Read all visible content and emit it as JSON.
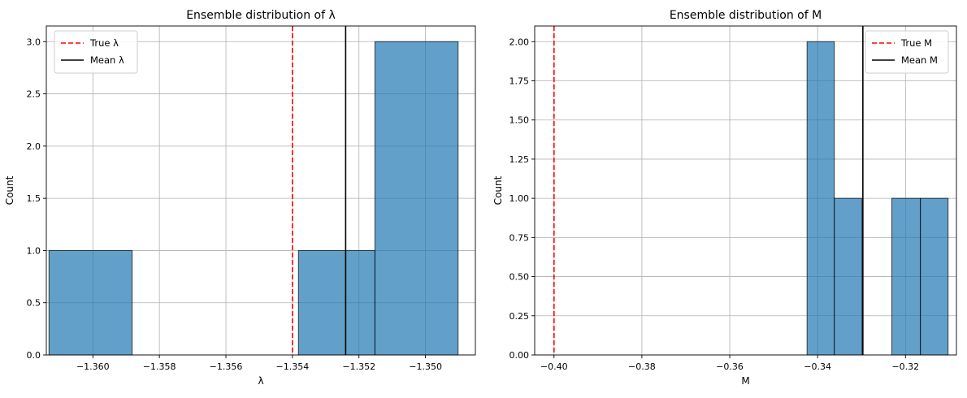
{
  "chart_data": [
    {
      "type": "bar",
      "title": "Ensemble distribution of λ",
      "xlabel": "λ",
      "ylabel": "Count",
      "xlim": [
        -1.3614,
        -1.3485
      ],
      "ylim": [
        0,
        3.15
      ],
      "xticks": [
        -1.36,
        -1.358,
        -1.356,
        -1.354,
        -1.352,
        -1.35
      ],
      "xtick_labels": [
        "−1.360",
        "−1.358",
        "−1.356",
        "−1.354",
        "−1.352",
        "−1.350"
      ],
      "yticks": [
        0,
        0.5,
        1.0,
        1.5,
        2.0,
        2.5,
        3.0
      ],
      "ytick_labels": [
        "0.0",
        "0.5",
        "1.0",
        "1.5",
        "2.0",
        "2.5",
        "3.0"
      ],
      "grid": true,
      "bins": [
        {
          "x0": -1.36132,
          "x1": -1.35882,
          "count": 1
        },
        {
          "x0": -1.35882,
          "x1": -1.35632,
          "count": 0
        },
        {
          "x0": -1.35632,
          "x1": -1.35382,
          "count": 0
        },
        {
          "x0": -1.35382,
          "x1": -1.35152,
          "count": 1
        },
        {
          "x0": -1.35152,
          "x1": -1.34902,
          "count": 3
        }
      ],
      "lines": [
        {
          "name": "True λ",
          "x": -1.354,
          "color": "#ff0000",
          "style": "dashed"
        },
        {
          "name": "Mean λ",
          "x": -1.3524,
          "color": "#000000",
          "style": "solid"
        }
      ],
      "legend": "top-left"
    },
    {
      "type": "bar",
      "title": "Ensemble distribution of M",
      "xlabel": "M",
      "ylabel": "Count",
      "xlim": [
        -0.4044,
        -0.3084
      ],
      "ylim": [
        0,
        2.1
      ],
      "xticks": [
        -0.4,
        -0.38,
        -0.36,
        -0.34,
        -0.32
      ],
      "xtick_labels": [
        "−0.40",
        "−0.38",
        "−0.36",
        "−0.34",
        "−0.32"
      ],
      "yticks": [
        0,
        0.25,
        0.5,
        0.75,
        1.0,
        1.25,
        1.5,
        1.75,
        2.0
      ],
      "ytick_labels": [
        "0.00",
        "0.25",
        "0.50",
        "0.75",
        "1.00",
        "1.25",
        "1.50",
        "1.75",
        "2.00"
      ],
      "grid": true,
      "bins": [
        {
          "x0": -0.3424,
          "x1": -0.3362,
          "count": 2
        },
        {
          "x0": -0.3362,
          "x1": -0.3299,
          "count": 1
        },
        {
          "x0": -0.3299,
          "x1": -0.3231,
          "count": 0
        },
        {
          "x0": -0.3231,
          "x1": -0.3166,
          "count": 1
        },
        {
          "x0": -0.3166,
          "x1": -0.3103,
          "count": 1
        }
      ],
      "lines": [
        {
          "name": "True M",
          "x": -0.4,
          "color": "#ff0000",
          "style": "dashed"
        },
        {
          "name": "Mean M",
          "x": -0.3297,
          "color": "#000000",
          "style": "solid"
        }
      ],
      "legend": "top-right"
    }
  ],
  "colors": {
    "bar_fill": "#1f77b4",
    "bar_edge": "#000000",
    "grid": "#b0b0b0"
  }
}
